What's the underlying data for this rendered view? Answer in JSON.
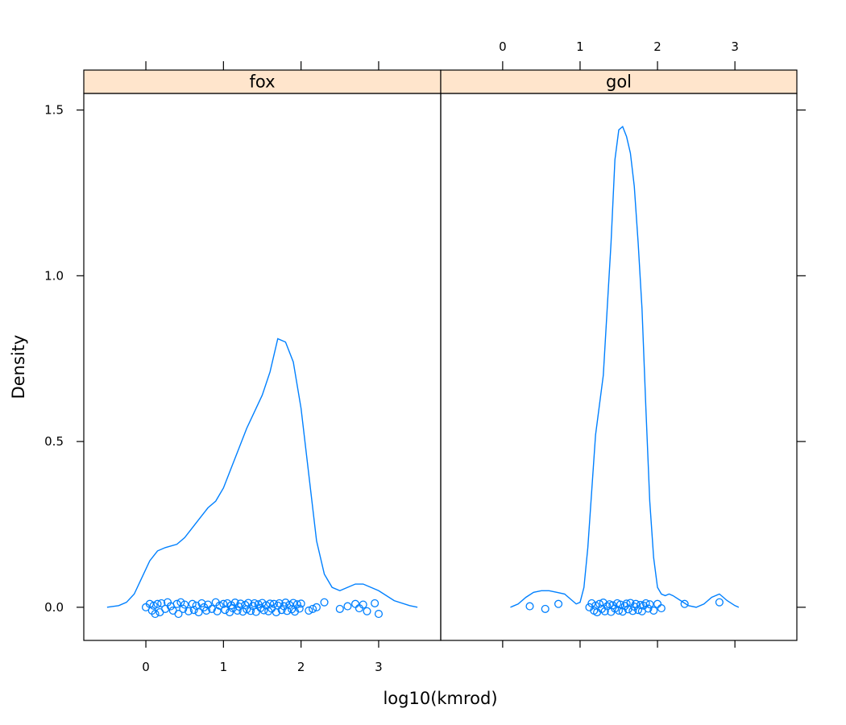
{
  "chart_data": {
    "type": "line",
    "subtype": "density-with-jittered-rug",
    "xlabel": "log10(kmrod)",
    "ylabel": "Density",
    "xlim": [
      -0.8,
      3.8
    ],
    "ylim": [
      -0.1,
      1.55
    ],
    "x_ticks": [
      0,
      1,
      2,
      3
    ],
    "y_ticks": [
      0.0,
      0.5,
      1.0,
      1.5
    ],
    "x_tick_labels": [
      "0",
      "1",
      "2",
      "3"
    ],
    "y_tick_labels": [
      "0.0",
      "0.5",
      "1.0",
      "1.5"
    ],
    "grid": false,
    "colors": {
      "series": "#0080ff",
      "strip_fill": "#ffe5cc",
      "axis": "#000000"
    },
    "panels": [
      {
        "name": "fox",
        "density": {
          "x": [
            -0.5,
            -0.35,
            -0.25,
            -0.15,
            -0.05,
            0.05,
            0.15,
            0.25,
            0.4,
            0.5,
            0.6,
            0.7,
            0.8,
            0.9,
            1.0,
            1.1,
            1.2,
            1.3,
            1.4,
            1.5,
            1.6,
            1.7,
            1.8,
            1.9,
            2.0,
            2.1,
            2.2,
            2.3,
            2.4,
            2.5,
            2.6,
            2.7,
            2.8,
            2.9,
            3.0,
            3.2,
            3.4,
            3.5
          ],
          "y": [
            0.0,
            0.005,
            0.015,
            0.04,
            0.09,
            0.14,
            0.17,
            0.18,
            0.19,
            0.21,
            0.24,
            0.27,
            0.3,
            0.32,
            0.36,
            0.42,
            0.48,
            0.54,
            0.59,
            0.64,
            0.71,
            0.81,
            0.8,
            0.74,
            0.6,
            0.4,
            0.2,
            0.1,
            0.06,
            0.05,
            0.06,
            0.07,
            0.07,
            0.06,
            0.05,
            0.02,
            0.005,
            0.0
          ]
        },
        "points_x": [
          0.0,
          0.05,
          0.08,
          0.1,
          0.12,
          0.15,
          0.18,
          0.2,
          0.25,
          0.28,
          0.32,
          0.35,
          0.4,
          0.42,
          0.45,
          0.48,
          0.5,
          0.55,
          0.6,
          0.62,
          0.65,
          0.68,
          0.72,
          0.75,
          0.78,
          0.8,
          0.85,
          0.9,
          0.92,
          0.95,
          1.0,
          1.02,
          1.05,
          1.08,
          1.1,
          1.12,
          1.15,
          1.18,
          1.2,
          1.22,
          1.25,
          1.28,
          1.3,
          1.32,
          1.35,
          1.38,
          1.4,
          1.42,
          1.45,
          1.48,
          1.5,
          1.52,
          1.55,
          1.58,
          1.6,
          1.62,
          1.65,
          1.68,
          1.7,
          1.72,
          1.75,
          1.78,
          1.8,
          1.82,
          1.85,
          1.88,
          1.9,
          1.92,
          1.95,
          1.98,
          2.0,
          2.1,
          2.15,
          2.2,
          2.3,
          2.5,
          2.6,
          2.7,
          2.75,
          2.8,
          2.85,
          2.95,
          3.0
        ],
        "points_y": [
          0.0,
          0.01,
          -0.01,
          0.005,
          -0.02,
          0.01,
          -0.015,
          0.012,
          -0.005,
          0.015,
          0.003,
          -0.01,
          0.01,
          -0.02,
          0.015,
          -0.005,
          0.008,
          -0.012,
          0.01,
          -0.008,
          0.005,
          -0.015,
          0.012,
          0.0,
          -0.01,
          0.008,
          -0.005,
          0.015,
          -0.012,
          0.005,
          0.01,
          -0.008,
          0.012,
          -0.015,
          0.006,
          -0.003,
          0.014,
          -0.01,
          0.002,
          0.011,
          -0.013,
          0.007,
          -0.006,
          0.013,
          -0.011,
          0.004,
          0.012,
          -0.014,
          0.009,
          -0.002,
          0.013,
          -0.009,
          0.006,
          -0.012,
          0.011,
          -0.004,
          0.01,
          -0.015,
          0.005,
          0.012,
          -0.008,
          0.003,
          0.014,
          -0.011,
          0.007,
          -0.006,
          0.013,
          -0.013,
          0.009,
          -0.004,
          0.011,
          -0.01,
          -0.005,
          0.0,
          0.015,
          -0.005,
          0.003,
          0.01,
          -0.003,
          0.008,
          -0.012,
          0.012,
          -0.02
        ]
      },
      {
        "name": "gol",
        "density": {
          "x": [
            0.1,
            0.2,
            0.3,
            0.4,
            0.5,
            0.6,
            0.7,
            0.8,
            0.9,
            0.95,
            1.0,
            1.05,
            1.1,
            1.15,
            1.2,
            1.3,
            1.4,
            1.45,
            1.5,
            1.55,
            1.6,
            1.65,
            1.7,
            1.75,
            1.8,
            1.85,
            1.9,
            1.95,
            2.0,
            2.05,
            2.1,
            2.15,
            2.2,
            2.3,
            2.4,
            2.5,
            2.6,
            2.7,
            2.8,
            2.9,
            3.0,
            3.05
          ],
          "y": [
            0.0,
            0.01,
            0.03,
            0.045,
            0.05,
            0.05,
            0.045,
            0.04,
            0.02,
            0.01,
            0.015,
            0.06,
            0.18,
            0.35,
            0.52,
            0.7,
            1.1,
            1.35,
            1.44,
            1.45,
            1.42,
            1.37,
            1.27,
            1.1,
            0.9,
            0.6,
            0.32,
            0.15,
            0.06,
            0.04,
            0.035,
            0.04,
            0.035,
            0.02,
            0.005,
            0.0,
            0.01,
            0.03,
            0.04,
            0.02,
            0.005,
            0.0
          ],
          "note_x_offset": 0.0
        },
        "points_x": [
          0.35,
          0.55,
          0.72,
          1.12,
          1.15,
          1.18,
          1.2,
          1.22,
          1.25,
          1.28,
          1.3,
          1.32,
          1.35,
          1.38,
          1.4,
          1.42,
          1.45,
          1.48,
          1.5,
          1.52,
          1.55,
          1.58,
          1.6,
          1.62,
          1.65,
          1.68,
          1.7,
          1.72,
          1.75,
          1.78,
          1.8,
          1.82,
          1.85,
          1.88,
          1.9,
          1.95,
          2.0,
          2.05,
          2.35,
          2.8
        ],
        "points_y": [
          0.003,
          -0.005,
          0.01,
          0.0,
          0.012,
          -0.01,
          0.005,
          -0.015,
          0.01,
          -0.005,
          0.014,
          -0.012,
          0.003,
          0.009,
          -0.014,
          0.006,
          -0.004,
          0.012,
          -0.01,
          0.008,
          -0.013,
          0.004,
          0.011,
          -0.006,
          0.013,
          -0.011,
          0.002,
          0.01,
          -0.008,
          0.007,
          -0.012,
          0.005,
          0.012,
          -0.004,
          0.009,
          -0.01,
          0.01,
          -0.003,
          0.01,
          0.015
        ]
      }
    ]
  }
}
